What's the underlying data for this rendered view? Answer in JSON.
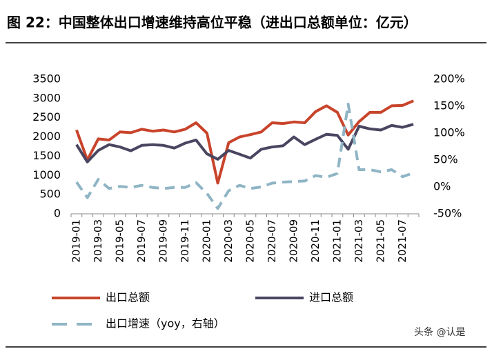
{
  "chart_data": {
    "type": "line",
    "title": "图 22：中国整体出口增速维持高位平稳（进出口总额单位：亿元）",
    "watermark": "头条 @认是",
    "categories": [
      "2019-01",
      null,
      "2019-03",
      null,
      "2019-05",
      null,
      "2019-07",
      null,
      "2019-09",
      null,
      "2019-11",
      null,
      "2020-01",
      null,
      "2020-03",
      null,
      "2020-05",
      null,
      "2020-07",
      null,
      "2020-09",
      null,
      "2020-11",
      null,
      "2021-01",
      null,
      "2021-03",
      null,
      "2021-05",
      null,
      "2021-07",
      null
    ],
    "ylim": [
      0,
      3500
    ],
    "yticks": [
      0,
      500,
      1000,
      1500,
      2000,
      2500,
      3000,
      3500
    ],
    "y2lim": [
      -50,
      200
    ],
    "y2ticks": [
      {
        "value": -50,
        "label": "-50%"
      },
      {
        "value": 0,
        "label": "0%"
      },
      {
        "value": 50,
        "label": "50%"
      },
      {
        "value": 100,
        "label": "100%"
      },
      {
        "value": 150,
        "label": "150%"
      },
      {
        "value": 200,
        "label": "200%"
      }
    ],
    "legend": "bottom",
    "series": [
      {
        "name": "出口总额",
        "color": "#c8442b",
        "dashed": false,
        "values": [
          2180,
          1400,
          1950,
          1920,
          2130,
          2110,
          2200,
          2150,
          2180,
          2130,
          2200,
          2370,
          2100,
          800,
          1850,
          2000,
          2060,
          2130,
          2370,
          2350,
          2390,
          2370,
          2660,
          2810,
          2640,
          2050,
          2400,
          2640,
          2640,
          2810,
          2820,
          2940
        ]
      },
      {
        "name": "进口总额",
        "color": "#4a4560",
        "dashed": false,
        "values": [
          1800,
          1350,
          1650,
          1800,
          1740,
          1640,
          1780,
          1800,
          1780,
          1710,
          1840,
          1920,
          1560,
          1420,
          1650,
          1550,
          1450,
          1680,
          1740,
          1770,
          2000,
          1800,
          1940,
          2070,
          2040,
          1680,
          2280,
          2210,
          2180,
          2300,
          2250,
          2330
        ]
      },
      {
        "name": "出口增速（yoy，右轴）",
        "color": "#8fb5c5",
        "dashed": true,
        "axis": "y2",
        "values": [
          9,
          -20,
          14,
          -3,
          1,
          -1,
          3,
          -1,
          -3,
          -1,
          -1,
          8,
          -12,
          -40,
          -7,
          3,
          -3,
          0,
          7,
          9,
          10,
          11,
          21,
          18,
          25,
          154,
          32,
          32,
          28,
          32,
          19,
          26
        ]
      }
    ]
  }
}
